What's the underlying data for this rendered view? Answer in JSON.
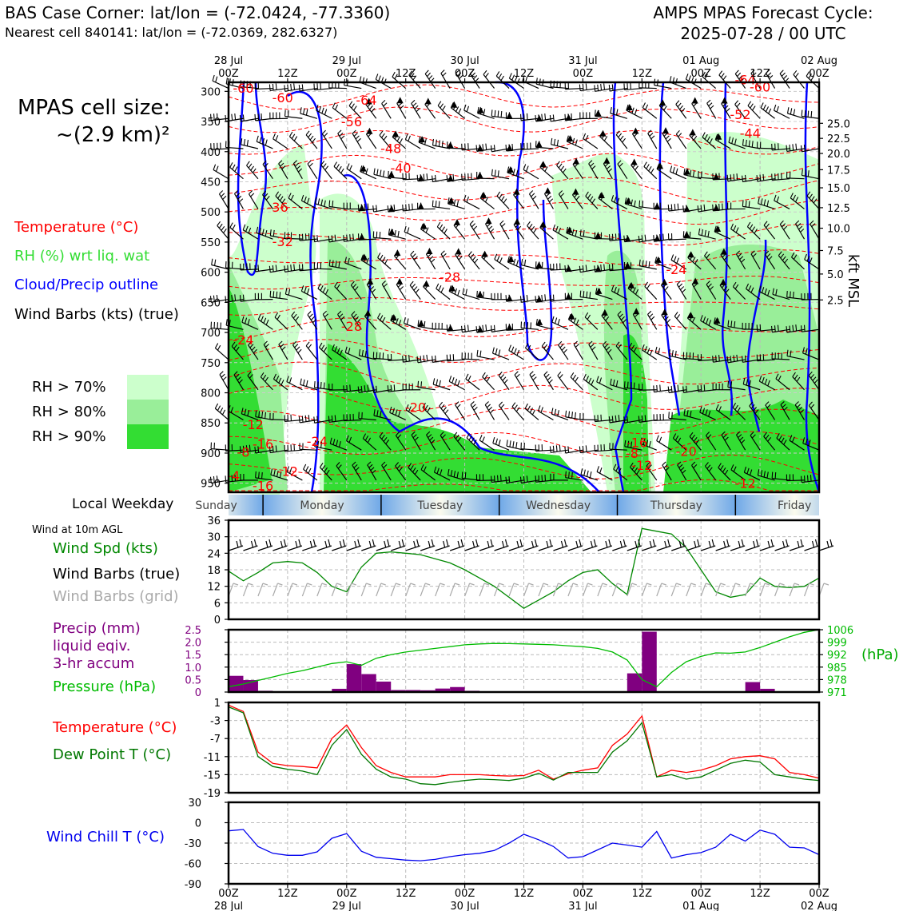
{
  "header": {
    "title_left_line1": "BAS Case Corner: lat/lon = (-72.0424, -77.3360)",
    "title_left_line2": "Nearest cell 840141: lat/lon = (-72.0369, 282.6327)",
    "title_right_line1": "AMPS MPAS Forecast Cycle:",
    "title_right_line2": "2025-07-28 / 00 UTC"
  },
  "cell_size": {
    "line1": "MPAS cell size:",
    "line2": "~(2.9 km)²"
  },
  "colors": {
    "temperature": "#ff0000",
    "rh": "#33dd33",
    "cloud": "#0000ff",
    "wind": "#000000",
    "grid_barb": "#aaaaaa",
    "precip": "#800080",
    "pressure": "#00bb00",
    "wind_speed": "#008800",
    "dewpoint": "#007700",
    "wind_chill": "#0000ee",
    "rh70": "#ccffcc",
    "rh80": "#99ee99",
    "rh90": "#33dd33"
  },
  "legend_main": {
    "temperature": "Temperature (°C)",
    "rh": "RH (%) wrt liq. wat",
    "cloud": "Cloud/Precip outline",
    "wind": "Wind Barbs (kts) (true)"
  },
  "rh_legend": [
    "RH > 70%",
    "RH > 80%",
    "RH > 90%"
  ],
  "time_axis": {
    "top_ticks": [
      {
        "h": 0,
        "l1": "28 Jul",
        "l2": "00Z"
      },
      {
        "h": 12,
        "l1": "",
        "l2": "12Z"
      },
      {
        "h": 24,
        "l1": "29 Jul",
        "l2": "00Z"
      },
      {
        "h": 36,
        "l1": "",
        "l2": "12Z"
      },
      {
        "h": 48,
        "l1": "30 Jul",
        "l2": "00Z"
      },
      {
        "h": 60,
        "l1": "",
        "l2": "12Z"
      },
      {
        "h": 72,
        "l1": "31 Jul",
        "l2": "00Z"
      },
      {
        "h": 84,
        "l1": "",
        "l2": "12Z"
      },
      {
        "h": 96,
        "l1": "01 Aug",
        "l2": "00Z"
      },
      {
        "h": 108,
        "l1": "",
        "l2": "12Z"
      },
      {
        "h": 120,
        "l1": "02 Aug",
        "l2": "00Z"
      }
    ],
    "bottom_ticks": [
      {
        "h": 0,
        "l1": "00Z",
        "l2": "28 Jul"
      },
      {
        "h": 12,
        "l1": "12Z",
        "l2": ""
      },
      {
        "h": 24,
        "l1": "00Z",
        "l2": "29 Jul"
      },
      {
        "h": 36,
        "l1": "12Z",
        "l2": ""
      },
      {
        "h": 48,
        "l1": "00Z",
        "l2": "30 Jul"
      },
      {
        "h": 60,
        "l1": "12Z",
        "l2": ""
      },
      {
        "h": 72,
        "l1": "00Z",
        "l2": "31 Jul"
      },
      {
        "h": 84,
        "l1": "12Z",
        "l2": ""
      },
      {
        "h": 96,
        "l1": "00Z",
        "l2": "01 Aug"
      },
      {
        "h": 108,
        "l1": "12Z",
        "l2": ""
      },
      {
        "h": 120,
        "l1": "00Z",
        "l2": "02 Aug"
      }
    ],
    "hours_range": [
      0,
      120
    ]
  },
  "chart_data": [
    {
      "type": "heatmap",
      "name": "cross-section",
      "ylabel_right": "kft MSL",
      "pressure_ticks": [
        300,
        350,
        400,
        450,
        500,
        550,
        600,
        650,
        700,
        750,
        800,
        850,
        900,
        950
      ],
      "ylim": [
        965,
        285
      ],
      "kft_ticks": [
        {
          "p": 353,
          "label": "25.0"
        },
        {
          "p": 378,
          "label": "22.5"
        },
        {
          "p": 403,
          "label": "20.0"
        },
        {
          "p": 430,
          "label": "17.5"
        },
        {
          "p": 460,
          "label": "15.0"
        },
        {
          "p": 493,
          "label": "12.5"
        },
        {
          "p": 527,
          "label": "10.0"
        },
        {
          "p": 564,
          "label": "7.5"
        },
        {
          "p": 603,
          "label": "5.0"
        },
        {
          "p": 646,
          "label": "2.5"
        }
      ],
      "temperature_labels": [
        {
          "h": 3,
          "p": 302,
          "t": "-60"
        },
        {
          "h": 11,
          "p": 318,
          "t": "-60"
        },
        {
          "h": 28,
          "p": 322,
          "t": "-64"
        },
        {
          "h": 25,
          "p": 358,
          "t": "-56"
        },
        {
          "h": 33,
          "p": 402,
          "t": "-48"
        },
        {
          "h": 35,
          "p": 435,
          "t": "-40"
        },
        {
          "h": 10,
          "p": 500,
          "t": "-36"
        },
        {
          "h": 11,
          "p": 557,
          "t": "-32"
        },
        {
          "h": 45,
          "p": 616,
          "t": "-28"
        },
        {
          "h": 25,
          "p": 697,
          "t": "-28"
        },
        {
          "h": 3,
          "p": 720,
          "t": "-24"
        },
        {
          "h": 38,
          "p": 832,
          "t": "-20"
        },
        {
          "h": 18,
          "p": 888,
          "t": "-24"
        },
        {
          "h": 5,
          "p": 860,
          "t": "-12"
        },
        {
          "h": 7,
          "p": 893,
          "t": "-16"
        },
        {
          "h": 3,
          "p": 906,
          "t": "-8"
        },
        {
          "h": 12,
          "p": 938,
          "t": "-12"
        },
        {
          "h": 7,
          "p": 962,
          "t": "-16"
        },
        {
          "h": 1,
          "p": 945,
          "t": "-4"
        },
        {
          "h": 83,
          "p": 890,
          "t": "-16"
        },
        {
          "h": 82,
          "p": 908,
          "t": "-8"
        },
        {
          "h": 84,
          "p": 928,
          "t": "-12"
        },
        {
          "h": 93,
          "p": 905,
          "t": "-20"
        },
        {
          "h": 105,
          "p": 958,
          "t": "-12"
        },
        {
          "h": 105,
          "p": 288,
          "t": "-64"
        },
        {
          "h": 108,
          "p": 300,
          "t": "-60"
        },
        {
          "h": 104,
          "p": 346,
          "t": "-52"
        },
        {
          "h": 106,
          "p": 377,
          "t": "-44"
        },
        {
          "h": 91,
          "p": 603,
          "t": "-24"
        }
      ],
      "pressure_contour": [
        1006,
        999,
        992,
        985,
        978,
        971
      ]
    },
    {
      "type": "line",
      "name": "wind",
      "title": "Wind at 10m AGL",
      "series_labels": [
        "Wind Spd (kts)",
        "Wind Barbs (true)",
        "Wind Barbs (grid)"
      ],
      "yticks": [
        0,
        6,
        12,
        18,
        24,
        30,
        36
      ],
      "ylim": [
        0,
        36
      ],
      "x": [
        0,
        3,
        6,
        9,
        12,
        15,
        18,
        21,
        24,
        27,
        30,
        33,
        36,
        39,
        42,
        45,
        48,
        51,
        54,
        57,
        60,
        63,
        66,
        69,
        72,
        75,
        78,
        81,
        84,
        87,
        90,
        93,
        96,
        99,
        102,
        105,
        108,
        111,
        114,
        117,
        120
      ],
      "speed": [
        17.5,
        14,
        17,
        20.5,
        21,
        20.5,
        17,
        12,
        10,
        19,
        24,
        24.5,
        24,
        23.5,
        22,
        20.5,
        18,
        15,
        12,
        8,
        4,
        7,
        10,
        14,
        17,
        18,
        13,
        9,
        33,
        32,
        31,
        26,
        18,
        10,
        8,
        9,
        15,
        12,
        11.5,
        12,
        15
      ]
    },
    {
      "type": "bar",
      "name": "precip-pressure",
      "labels": [
        "Precip (mm)",
        "liquid eqiv.",
        "3-hr accum",
        "Pressure (hPa)"
      ],
      "yticks_left": [
        0,
        0.5,
        1.0,
        1.5,
        2.0,
        2.5
      ],
      "ylim_left": [
        0,
        2.5
      ],
      "yticks_right": [
        971,
        978,
        985,
        992,
        999,
        1006
      ],
      "ylim_right": [
        971,
        1006
      ],
      "precip_x": [
        0,
        3,
        6,
        9,
        12,
        15,
        18,
        21,
        24,
        27,
        30,
        33,
        36,
        39,
        42,
        45,
        48,
        51,
        54,
        57,
        60,
        63,
        66,
        69,
        72,
        75,
        78,
        81,
        84,
        87,
        90,
        93,
        96,
        99,
        102,
        105,
        108,
        111,
        114,
        117
      ],
      "precip": [
        0.65,
        0.48,
        0.05,
        0.0,
        0.0,
        0.0,
        0.0,
        0.13,
        1.12,
        0.72,
        0.42,
        0.08,
        0.08,
        0.07,
        0.14,
        0.2,
        0.05,
        0.0,
        0.0,
        0.0,
        0.0,
        0.0,
        0.0,
        0.0,
        0.0,
        0.0,
        0.0,
        0.75,
        2.42,
        0.0,
        0.0,
        0.0,
        0.0,
        0.0,
        0.0,
        0.4,
        0.13,
        0.0,
        0.03,
        0.0
      ],
      "pressure_x": [
        0,
        3,
        6,
        9,
        12,
        15,
        18,
        21,
        24,
        27,
        30,
        33,
        36,
        39,
        42,
        45,
        48,
        51,
        54,
        57,
        60,
        63,
        66,
        69,
        72,
        75,
        78,
        81,
        84,
        87,
        90,
        93,
        96,
        99,
        102,
        105,
        108,
        111,
        114,
        117,
        120
      ],
      "pressure": [
        974,
        975.5,
        977.5,
        979.5,
        981.5,
        983,
        985,
        987,
        988,
        986,
        990,
        992,
        993.5,
        994.5,
        995.5,
        996.5,
        997.5,
        998,
        998.3,
        998.2,
        998,
        997.8,
        997.5,
        997,
        996.5,
        995.5,
        993.5,
        989,
        978,
        974,
        982,
        988,
        991,
        993,
        992.8,
        993.5,
        996,
        999,
        1002,
        1004.5,
        1006
      ]
    },
    {
      "type": "line",
      "name": "temperature-dewpoint",
      "labels": [
        "Temperature (°C)",
        "Dew Point T (°C)"
      ],
      "yticks": [
        1,
        -3,
        -7,
        -11,
        -15,
        -19
      ],
      "ylim": [
        -19,
        1
      ],
      "x": [
        0,
        3,
        6,
        9,
        12,
        15,
        18,
        21,
        24,
        27,
        30,
        33,
        36,
        39,
        42,
        45,
        48,
        51,
        54,
        57,
        60,
        63,
        66,
        69,
        72,
        75,
        78,
        81,
        84,
        87,
        90,
        93,
        96,
        99,
        102,
        105,
        108,
        111,
        114,
        117,
        120
      ],
      "temperature": [
        0.4,
        -1,
        -10,
        -12.5,
        -13,
        -13.2,
        -13.5,
        -7,
        -4,
        -9,
        -13,
        -14.5,
        -15.5,
        -15.5,
        -15.5,
        -15,
        -15,
        -15,
        -15.2,
        -15.3,
        -15.2,
        -14,
        -16,
        -14.8,
        -14,
        -13.5,
        -8.5,
        -6,
        -2,
        -15.5,
        -14,
        -14.5,
        -14,
        -13,
        -11.5,
        -11,
        -10.8,
        -11.5,
        -14.5,
        -15,
        -15.8
      ],
      "dewpoint": [
        0,
        -1.3,
        -11,
        -13.2,
        -13.8,
        -14.2,
        -15,
        -8.5,
        -5,
        -10.5,
        -13.8,
        -15.5,
        -16,
        -17,
        -17.2,
        -16.7,
        -16.3,
        -16,
        -16.1,
        -16.3,
        -15.8,
        -14.7,
        -16.2,
        -14.5,
        -14.5,
        -14.5,
        -10,
        -7.5,
        -3.5,
        -15.5,
        -15,
        -16,
        -15.5,
        -14,
        -12.5,
        -11.8,
        -12.2,
        -15,
        -15.5,
        -16,
        -16.3
      ]
    },
    {
      "type": "line",
      "name": "wind-chill",
      "label": "Wind Chill T (°C)",
      "yticks": [
        30,
        0,
        -30,
        -60,
        -90
      ],
      "ylim": [
        -90,
        30
      ],
      "x": [
        0,
        3,
        6,
        9,
        12,
        15,
        18,
        21,
        24,
        27,
        30,
        33,
        36,
        39,
        42,
        45,
        48,
        51,
        54,
        57,
        60,
        63,
        66,
        69,
        72,
        75,
        78,
        81,
        84,
        87,
        90,
        93,
        96,
        99,
        102,
        105,
        108,
        111,
        114,
        117,
        120
      ],
      "wind_chill": [
        -12,
        -10,
        -35,
        -45,
        -48,
        -48,
        -43,
        -23,
        -16,
        -42,
        -51,
        -53,
        -55,
        -56,
        -54,
        -50,
        -47,
        -45,
        -41,
        -30,
        -17,
        -25,
        -35,
        -52,
        -50,
        -40,
        -30,
        -33,
        -36,
        -13,
        -52,
        -47,
        -44,
        -36,
        -17,
        -27,
        -11,
        -17,
        -36,
        -37,
        -47
      ]
    }
  ],
  "weekday_bar": {
    "label": "Local Weekday",
    "days": [
      {
        "name": "Sunday",
        "start": -12,
        "end": 7
      },
      {
        "name": "Monday",
        "start": 7,
        "end": 31
      },
      {
        "name": "Tuesday",
        "start": 31,
        "end": 55
      },
      {
        "name": "Wednesday",
        "start": 55,
        "end": 79
      },
      {
        "name": "Thursday",
        "start": 79,
        "end": 103
      },
      {
        "name": "Friday",
        "start": 103,
        "end": 127
      }
    ]
  },
  "hpa_label": "(hPa)"
}
